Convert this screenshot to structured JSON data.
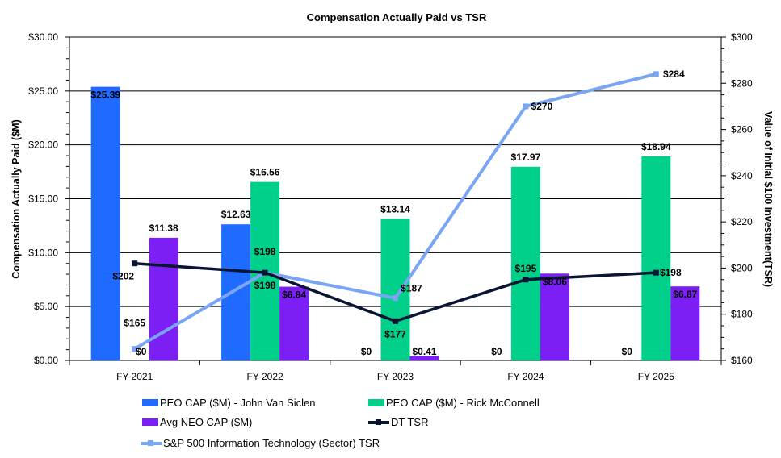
{
  "chart_data": {
    "type": "bar+line",
    "title": "Compensation Actually Paid  vs TSR",
    "ylabel": "Compensation Actually Paid ($M)",
    "y2label": "Value of Initial $100 Investment(TSR)",
    "categories": [
      "FY 2021",
      "FY 2022",
      "FY 2023",
      "FY 2024",
      "FY 2025"
    ],
    "ylim": [
      0,
      30
    ],
    "y2lim": [
      160,
      300
    ],
    "yticks": [
      "$0.00",
      "$5.00",
      "$10.00",
      "$15.00",
      "$20.00",
      "$25.00",
      "$30.00"
    ],
    "y2ticks": [
      "$160",
      "$180",
      "$200",
      "$220",
      "$240",
      "$260",
      "$280",
      "$300"
    ],
    "grid": true,
    "legend_position": "bottom",
    "bar_series": [
      {
        "name": "PEO CAP ($M) - John Van Siclen",
        "color": "#1f6bff",
        "values": [
          25.39,
          12.63,
          0,
          0,
          0
        ],
        "labels": [
          "$25.39",
          "$12.63",
          "$0",
          "$0",
          "$0"
        ]
      },
      {
        "name": "PEO CAP ($M) - Rick McConnell",
        "color": "#00d08a",
        "values": [
          0,
          16.56,
          13.14,
          17.97,
          18.94
        ],
        "labels": [
          "$0",
          "$16.56",
          "$13.14",
          "$17.97",
          "$18.94"
        ]
      },
      {
        "name": "Avg NEO CAP ($M)",
        "color": "#7b1ff5",
        "values": [
          11.38,
          6.84,
          0.41,
          8.06,
          6.87
        ],
        "labels": [
          "$11.38",
          "$6.84",
          "$0.41",
          "$8.06",
          "$6.87"
        ]
      }
    ],
    "line_series": [
      {
        "name": "DT TSR",
        "color": "#0a1433",
        "values": [
          202,
          198,
          177,
          195,
          198
        ],
        "labels": [
          "$202",
          "$198",
          "$177",
          "$195",
          "$198"
        ]
      },
      {
        "name": "S&P 500 Information Technology (Sector) TSR",
        "color": "#7aa5f5",
        "values": [
          165,
          198,
          187,
          270,
          284
        ],
        "labels": [
          "$165",
          "$198",
          "$187",
          "$270",
          "$284"
        ]
      }
    ]
  }
}
